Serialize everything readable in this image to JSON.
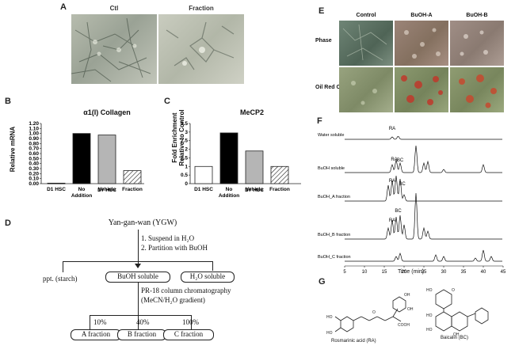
{
  "panels": {
    "A": {
      "letter": "A",
      "labels": [
        "Ctl",
        "Fraction"
      ]
    },
    "B": {
      "letter": "B",
      "title": "α1(I) Collagen",
      "ylabel": "Relative mRNA",
      "yticks": [
        "0.00",
        "0.10",
        "0.20",
        "0.30",
        "0.40",
        "0.50",
        "0.60",
        "0.70",
        "0.80",
        "0.90",
        "1.00",
        "1.10",
        "1.20"
      ],
      "xcats": [
        "D1 HSC",
        "No\nAddition",
        "Vehicle",
        "Fraction"
      ],
      "group_label": "D7 HSC"
    },
    "C": {
      "letter": "C",
      "title": "MeCP2",
      "ylabel": "Fold Enrichment\nRelative to Control",
      "yticks": [
        "0",
        "0.5",
        "1",
        "1.5",
        "2",
        "2.5",
        "3",
        "3.5"
      ],
      "xcats": [
        "D1 HSC",
        "No\nAddition",
        "Vehicle",
        "Fraction"
      ],
      "group_label": "D7 HSC"
    },
    "D": {
      "letter": "D",
      "top": "Yan-gan-wan (YGW)",
      "step1": "1. Suspend in H₂O",
      "step2": "2. Partition with BuOH",
      "ppt": "ppt. (starch)",
      "buoh": "BuOH soluble",
      "h2o": "H₂O soluble",
      "col1": "PR-18 column chromatography",
      "col2": "(MeCN/H₂O gradient)",
      "p10": "10%",
      "p40": "40%",
      "p100": "100%",
      "fa": "A fraction",
      "fb": "B fraction",
      "fc": "C fraction"
    },
    "E": {
      "letter": "E",
      "cols": [
        "Control",
        "BuOH-A",
        "BuOH-B"
      ],
      "rows": [
        "Phase",
        "Oil Red O"
      ]
    },
    "F": {
      "letter": "F",
      "traces": [
        "Water soluble",
        "BuOH soluble",
        "BuOH_A fraction",
        "BuOH_B fraction",
        "BuOH_C fraction"
      ],
      "peak_labels": [
        "RA",
        "RA",
        "BC",
        "RA",
        "BC",
        "RA",
        "BC"
      ],
      "xlabel": "Time (min)",
      "xticks": [
        "5",
        "10",
        "15",
        "20",
        "25",
        "30",
        "35",
        "40",
        "45"
      ]
    },
    "G": {
      "letter": "G",
      "ra": "Rosmarinic acid (RA)",
      "bc": "Baicalin (BC)"
    }
  },
  "chart_data": [
    {
      "type": "bar",
      "title": "α1(I) Collagen",
      "ylabel": "Relative mRNA",
      "categories": [
        "D1 HSC",
        "No Addition",
        "Vehicle",
        "Fraction"
      ],
      "values": [
        0.01,
        1.0,
        0.97,
        0.26
      ],
      "ylim": [
        0,
        1.2
      ]
    },
    {
      "type": "bar",
      "title": "MeCP2",
      "ylabel": "Fold Enrichment Relative to Control",
      "categories": [
        "D1 HSC",
        "No Addition",
        "Vehicle",
        "Fraction"
      ],
      "values": [
        1.0,
        2.95,
        1.9,
        1.0
      ],
      "ylim": [
        0,
        3.5
      ]
    }
  ]
}
